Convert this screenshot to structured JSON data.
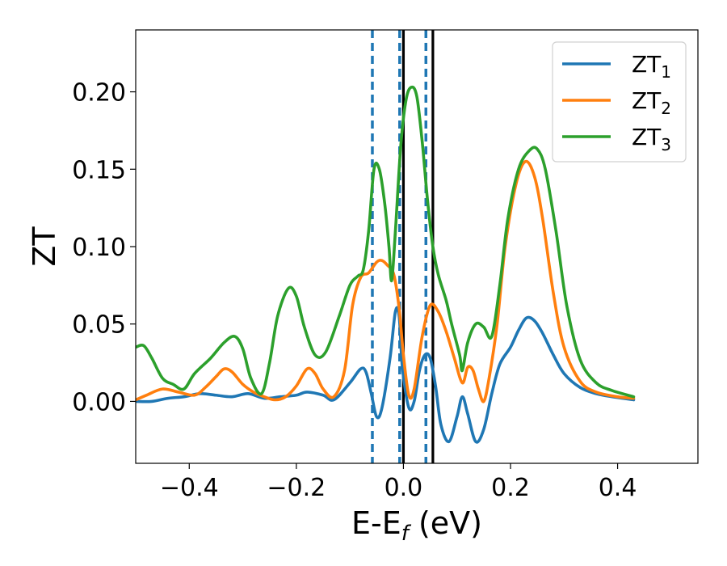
{
  "chart_data": {
    "type": "line",
    "title": "",
    "xlabel": "E-E",
    "xlabel_sub": "f",
    "xlabel_unit": " (eV)",
    "ylabel": "ZT",
    "xlim": [
      -0.5,
      0.55
    ],
    "ylim": [
      -0.04,
      0.24
    ],
    "grid": false,
    "legend_position": "top-right",
    "x_ticks": [
      -0.4,
      -0.2,
      0.0,
      0.2,
      0.4
    ],
    "x_tick_labels": [
      "−0.4",
      "−0.2",
      "0.0",
      "0.2",
      "0.4"
    ],
    "y_ticks": [
      0.0,
      0.05,
      0.1,
      0.15,
      0.2
    ],
    "y_tick_labels": [
      "0.00",
      "0.05",
      "0.10",
      "0.15",
      "0.20"
    ],
    "vlines": [
      {
        "x": -0.058,
        "style": "dashed",
        "color": "#1f77b4"
      },
      {
        "x": -0.007,
        "style": "dashed",
        "color": "#1f77b4"
      },
      {
        "x": 0.042,
        "style": "dashed",
        "color": "#1f77b4"
      },
      {
        "x": 0.0,
        "style": "solid",
        "color": "#000000"
      },
      {
        "x": 0.055,
        "style": "solid",
        "color": "#000000"
      }
    ],
    "series": [
      {
        "name": "ZT",
        "sub": "1",
        "color": "#1f77b4",
        "points": [
          [
            -0.5,
            0.0
          ],
          [
            -0.47,
            0.0
          ],
          [
            -0.44,
            0.002
          ],
          [
            -0.41,
            0.003
          ],
          [
            -0.38,
            0.005
          ],
          [
            -0.35,
            0.004
          ],
          [
            -0.32,
            0.003
          ],
          [
            -0.29,
            0.005
          ],
          [
            -0.26,
            0.002
          ],
          [
            -0.23,
            0.003
          ],
          [
            -0.2,
            0.004
          ],
          [
            -0.18,
            0.006
          ],
          [
            -0.15,
            0.004
          ],
          [
            -0.13,
            0.001
          ],
          [
            -0.1,
            0.012
          ],
          [
            -0.08,
            0.021
          ],
          [
            -0.07,
            0.019
          ],
          [
            -0.06,
            0.005
          ],
          [
            -0.05,
            -0.01
          ],
          [
            -0.04,
            -0.004
          ],
          [
            -0.025,
            0.028
          ],
          [
            -0.015,
            0.058
          ],
          [
            -0.008,
            0.055
          ],
          [
            -0.002,
            0.022
          ],
          [
            0.01,
            -0.004
          ],
          [
            0.02,
            0.0
          ],
          [
            0.03,
            0.02
          ],
          [
            0.04,
            0.03
          ],
          [
            0.05,
            0.028
          ],
          [
            0.06,
            0.01
          ],
          [
            0.07,
            -0.015
          ],
          [
            0.085,
            -0.026
          ],
          [
            0.1,
            -0.01
          ],
          [
            0.11,
            0.003
          ],
          [
            0.12,
            -0.008
          ],
          [
            0.135,
            -0.026
          ],
          [
            0.15,
            -0.018
          ],
          [
            0.165,
            0.005
          ],
          [
            0.18,
            0.024
          ],
          [
            0.2,
            0.035
          ],
          [
            0.215,
            0.046
          ],
          [
            0.23,
            0.054
          ],
          [
            0.245,
            0.052
          ],
          [
            0.26,
            0.044
          ],
          [
            0.28,
            0.03
          ],
          [
            0.3,
            0.018
          ],
          [
            0.33,
            0.009
          ],
          [
            0.36,
            0.005
          ],
          [
            0.39,
            0.003
          ],
          [
            0.43,
            0.001
          ]
        ]
      },
      {
        "name": "ZT",
        "sub": "2",
        "color": "#ff7f0e",
        "points": [
          [
            -0.5,
            0.001
          ],
          [
            -0.48,
            0.004
          ],
          [
            -0.45,
            0.008
          ],
          [
            -0.42,
            0.006
          ],
          [
            -0.39,
            0.004
          ],
          [
            -0.37,
            0.009
          ],
          [
            -0.35,
            0.016
          ],
          [
            -0.335,
            0.021
          ],
          [
            -0.32,
            0.019
          ],
          [
            -0.3,
            0.011
          ],
          [
            -0.28,
            0.006
          ],
          [
            -0.26,
            0.003
          ],
          [
            -0.24,
            0.001
          ],
          [
            -0.22,
            0.003
          ],
          [
            -0.2,
            0.01
          ],
          [
            -0.18,
            0.021
          ],
          [
            -0.165,
            0.018
          ],
          [
            -0.15,
            0.008
          ],
          [
            -0.13,
            0.003
          ],
          [
            -0.11,
            0.02
          ],
          [
            -0.095,
            0.062
          ],
          [
            -0.08,
            0.08
          ],
          [
            -0.065,
            0.083
          ],
          [
            -0.05,
            0.09
          ],
          [
            -0.04,
            0.091
          ],
          [
            -0.03,
            0.088
          ],
          [
            -0.018,
            0.082
          ],
          [
            -0.008,
            0.06
          ],
          [
            0.0,
            0.03
          ],
          [
            0.01,
            0.004
          ],
          [
            0.02,
            0.008
          ],
          [
            0.035,
            0.042
          ],
          [
            0.05,
            0.062
          ],
          [
            0.065,
            0.058
          ],
          [
            0.08,
            0.045
          ],
          [
            0.095,
            0.028
          ],
          [
            0.11,
            0.012
          ],
          [
            0.12,
            0.022
          ],
          [
            0.13,
            0.02
          ],
          [
            0.14,
            0.008
          ],
          [
            0.15,
            0.0
          ],
          [
            0.16,
            0.015
          ],
          [
            0.175,
            0.05
          ],
          [
            0.19,
            0.1
          ],
          [
            0.21,
            0.14
          ],
          [
            0.228,
            0.155
          ],
          [
            0.245,
            0.145
          ],
          [
            0.26,
            0.118
          ],
          [
            0.28,
            0.07
          ],
          [
            0.3,
            0.035
          ],
          [
            0.33,
            0.013
          ],
          [
            0.36,
            0.006
          ],
          [
            0.4,
            0.003
          ],
          [
            0.43,
            0.002
          ]
        ]
      },
      {
        "name": "ZT",
        "sub": "3",
        "color": "#2ca02c",
        "points": [
          [
            -0.5,
            0.035
          ],
          [
            -0.485,
            0.036
          ],
          [
            -0.47,
            0.028
          ],
          [
            -0.45,
            0.015
          ],
          [
            -0.43,
            0.011
          ],
          [
            -0.41,
            0.008
          ],
          [
            -0.39,
            0.018
          ],
          [
            -0.36,
            0.028
          ],
          [
            -0.335,
            0.038
          ],
          [
            -0.315,
            0.042
          ],
          [
            -0.3,
            0.034
          ],
          [
            -0.285,
            0.015
          ],
          [
            -0.265,
            0.005
          ],
          [
            -0.25,
            0.025
          ],
          [
            -0.235,
            0.055
          ],
          [
            -0.215,
            0.073
          ],
          [
            -0.2,
            0.068
          ],
          [
            -0.185,
            0.048
          ],
          [
            -0.165,
            0.03
          ],
          [
            -0.145,
            0.032
          ],
          [
            -0.12,
            0.055
          ],
          [
            -0.1,
            0.075
          ],
          [
            -0.085,
            0.081
          ],
          [
            -0.075,
            0.085
          ],
          [
            -0.065,
            0.11
          ],
          [
            -0.055,
            0.15
          ],
          [
            -0.045,
            0.15
          ],
          [
            -0.035,
            0.128
          ],
          [
            -0.027,
            0.1
          ],
          [
            -0.022,
            0.078
          ],
          [
            -0.015,
            0.11
          ],
          [
            -0.005,
            0.165
          ],
          [
            0.005,
            0.195
          ],
          [
            0.015,
            0.203
          ],
          [
            0.025,
            0.197
          ],
          [
            0.035,
            0.168
          ],
          [
            0.045,
            0.13
          ],
          [
            0.055,
            0.1
          ],
          [
            0.065,
            0.082
          ],
          [
            0.08,
            0.065
          ],
          [
            0.09,
            0.05
          ],
          [
            0.105,
            0.03
          ],
          [
            0.11,
            0.02
          ],
          [
            0.12,
            0.038
          ],
          [
            0.135,
            0.05
          ],
          [
            0.15,
            0.048
          ],
          [
            0.165,
            0.042
          ],
          [
            0.18,
            0.075
          ],
          [
            0.195,
            0.118
          ],
          [
            0.215,
            0.15
          ],
          [
            0.235,
            0.162
          ],
          [
            0.25,
            0.163
          ],
          [
            0.265,
            0.15
          ],
          [
            0.285,
            0.11
          ],
          [
            0.305,
            0.062
          ],
          [
            0.33,
            0.027
          ],
          [
            0.36,
            0.012
          ],
          [
            0.39,
            0.007
          ],
          [
            0.43,
            0.003
          ]
        ]
      }
    ]
  }
}
